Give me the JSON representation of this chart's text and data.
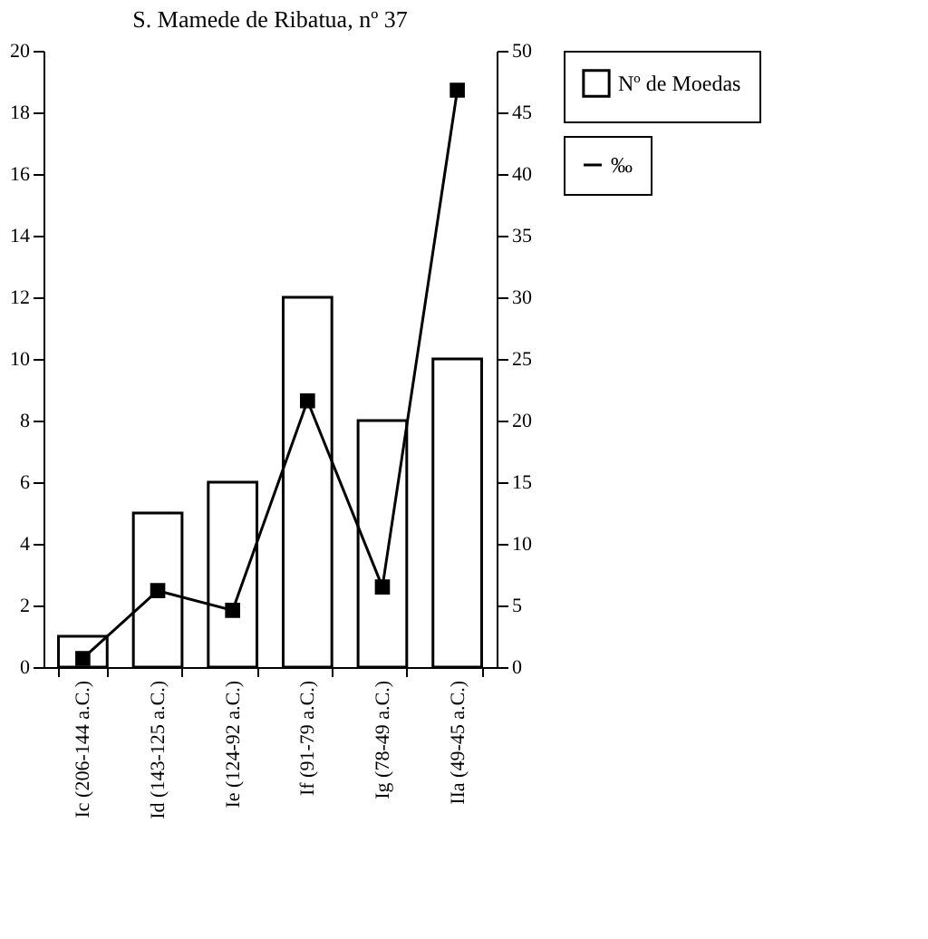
{
  "chart_data": {
    "type": "bar",
    "title": "S. Mamede de Ribatua, nº 37",
    "categories": [
      "Ic (206-144 a.C.)",
      "Id (143-125 a.C.)",
      "Ie (124-92 a.C.)",
      "If (91-79 a.C.)",
      "Ig (78-49 a.C.)",
      "IIa (49-45 a.C.)"
    ],
    "series": [
      {
        "name": "Nº de Moedas",
        "color": "#ffffff",
        "values": [
          1,
          5,
          6,
          12,
          8,
          10
        ]
      },
      {
        "name": "‰",
        "type": "line",
        "axis": "y2",
        "color": "#000000",
        "marker": "square",
        "values": [
          0.7,
          6.2,
          4.6,
          21.6,
          6.5,
          46.8
        ]
      }
    ],
    "ylim": [
      0,
      20
    ],
    "yticks": [
      0,
      2,
      4,
      6,
      8,
      10,
      12,
      14,
      16,
      18,
      20
    ],
    "y2lim": [
      0,
      50
    ],
    "y2ticks": [
      0,
      5,
      10,
      15,
      20,
      25,
      30,
      35,
      40,
      45,
      50
    ],
    "grid": false,
    "legend": "right"
  }
}
